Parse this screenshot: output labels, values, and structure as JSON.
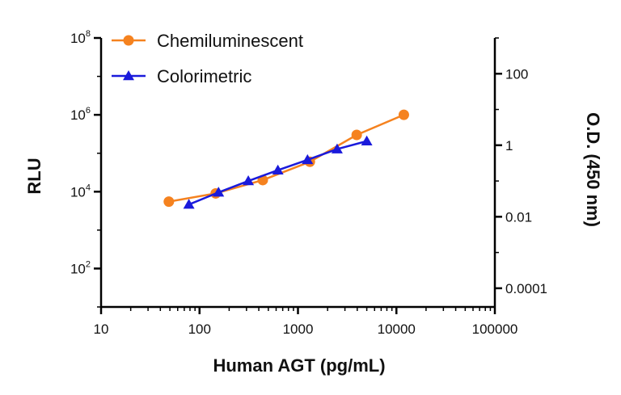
{
  "chart_data": {
    "type": "line",
    "title": "",
    "xlabel": "Human AGT (pg/mL)",
    "ylabel": "RLU",
    "y2label": "O.D. (450 nm)",
    "x_scale": "log",
    "y_scale": "log",
    "y2_scale": "log",
    "xlim": [
      10,
      100000
    ],
    "ylim": [
      10,
      100000000
    ],
    "y2lim": [
      3e-05,
      1000
    ],
    "grid": false,
    "legend_position": "top-left",
    "x_ticks": [
      "10",
      "100",
      "1000",
      "10000",
      "100000"
    ],
    "y_ticks": [
      {
        "base": "10",
        "exp": "2",
        "value": 100
      },
      {
        "base": "10",
        "exp": "4",
        "value": 10000
      },
      {
        "base": "10",
        "exp": "6",
        "value": 1000000
      },
      {
        "base": "10",
        "exp": "8",
        "value": 100000000
      }
    ],
    "y2_ticks": [
      "100",
      "1",
      "0.01",
      "0.0001"
    ],
    "series": [
      {
        "name": "Chemiluminescent",
        "axis": "left",
        "color": "#f5821f",
        "marker": "circle",
        "x": [
          48.8,
          146,
          439,
          1320,
          3950,
          11900
        ],
        "y": [
          5500,
          9000,
          20000,
          60000,
          300000,
          1000000
        ]
      },
      {
        "name": "Colorimetric",
        "axis": "right",
        "color": "#1a1adb",
        "marker": "triangle",
        "x": [
          78,
          156,
          313,
          625,
          1250,
          2500,
          5000
        ],
        "y": [
          0.022,
          0.048,
          0.1,
          0.2,
          0.39,
          0.78,
          1.3
        ]
      }
    ]
  }
}
